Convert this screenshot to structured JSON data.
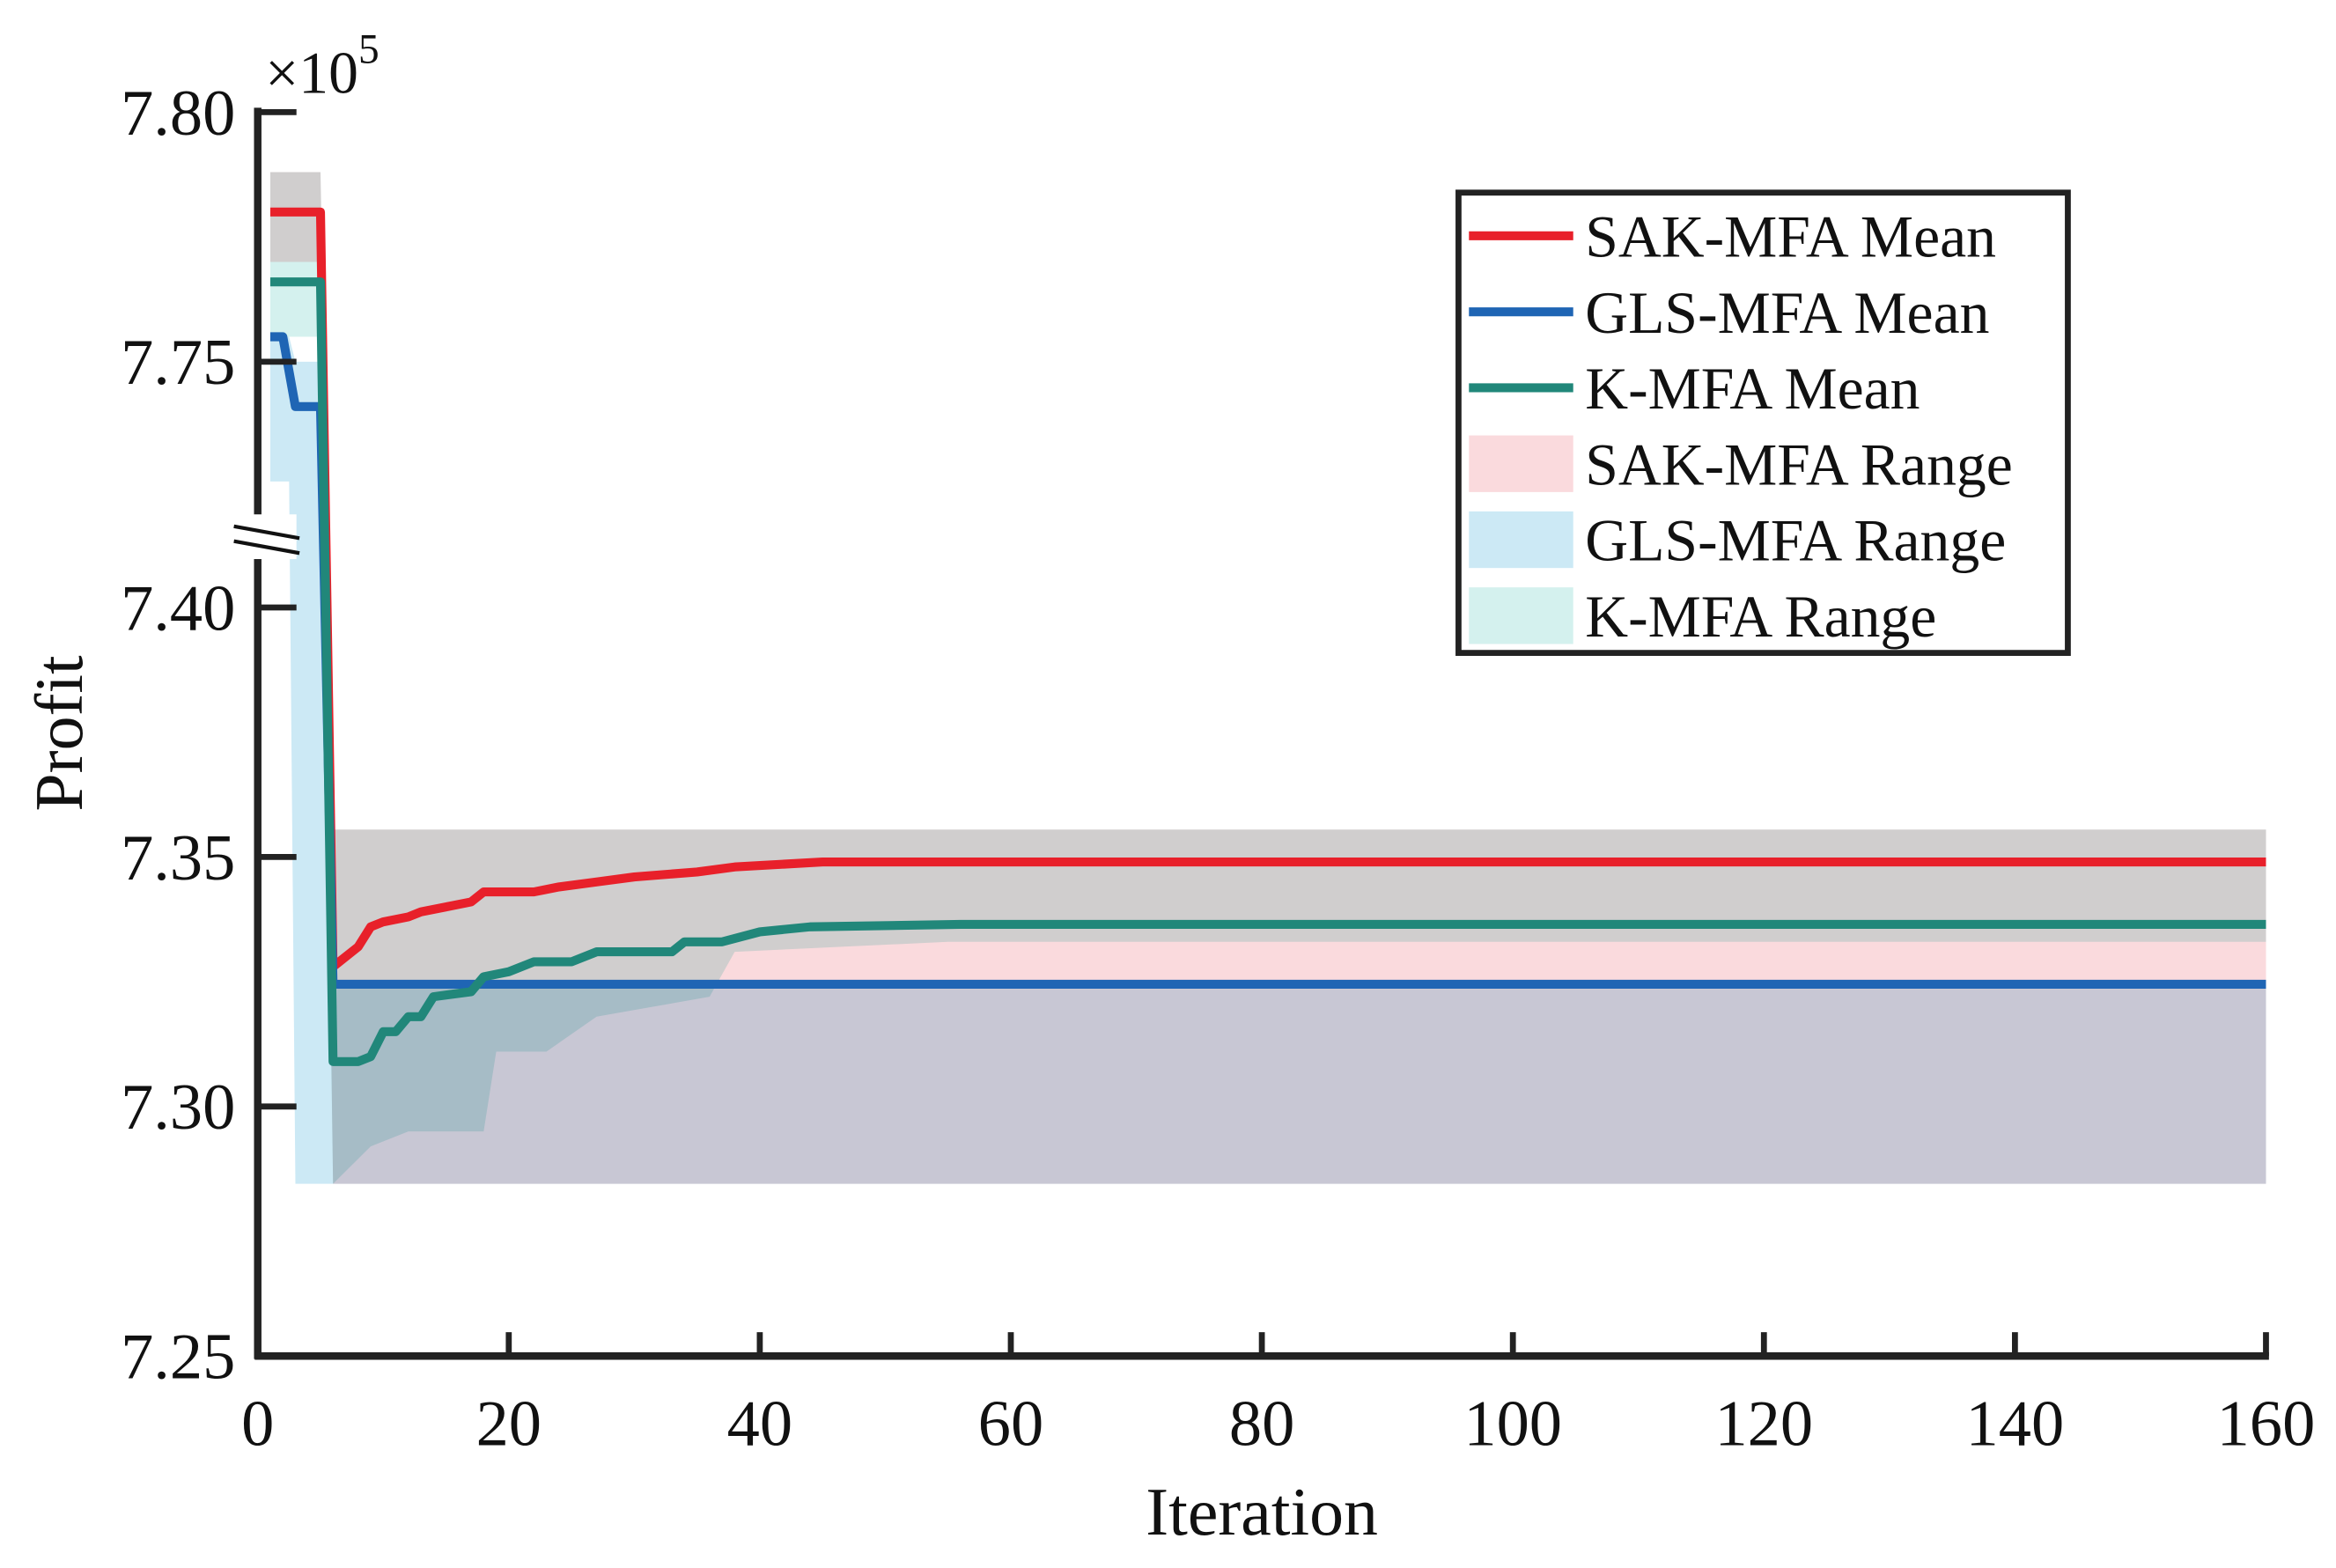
{
  "chart_data": {
    "type": "line",
    "title": "",
    "xlabel": "Iteration",
    "ylabel": "Profit",
    "y_multiplier_label": "×10",
    "y_multiplier_exp": "5",
    "xlim": [
      0,
      160
    ],
    "ylim_lower": [
      7.25,
      7.418
    ],
    "ylim_upper": [
      7.718,
      7.8
    ],
    "axis_break": "//",
    "grid": false,
    "legend_position": "top-right",
    "xticks": [
      "0",
      "20",
      "40",
      "60",
      "80",
      "100",
      "120",
      "140",
      "160"
    ],
    "xtick_values": [
      0,
      20,
      40,
      60,
      80,
      100,
      120,
      140,
      160
    ],
    "yticks": [
      "7.25",
      "7.30",
      "7.35",
      "7.40",
      "7.75",
      "7.80"
    ],
    "ytick_values": [
      7.25,
      7.3,
      7.35,
      7.4,
      7.75,
      7.8
    ],
    "series": [
      {
        "name": "SAK-MFA Mean",
        "kind": "line",
        "color": "#e8202a",
        "points": [
          [
            1,
            7.78
          ],
          [
            5,
            7.78
          ],
          [
            6,
            7.328
          ],
          [
            7,
            7.33
          ],
          [
            8,
            7.332
          ],
          [
            9,
            7.336
          ],
          [
            10,
            7.337
          ],
          [
            12,
            7.338
          ],
          [
            13,
            7.339
          ],
          [
            15,
            7.34
          ],
          [
            17,
            7.341
          ],
          [
            18,
            7.343
          ],
          [
            22,
            7.343
          ],
          [
            24,
            7.344
          ],
          [
            27,
            7.345
          ],
          [
            30,
            7.346
          ],
          [
            35,
            7.347
          ],
          [
            38,
            7.348
          ],
          [
            45,
            7.349
          ],
          [
            160,
            7.349
          ]
        ]
      },
      {
        "name": "GLS-MFA Mean",
        "kind": "line",
        "color": "#1f65b4",
        "points": [
          [
            1,
            7.755
          ],
          [
            2,
            7.755
          ],
          [
            3,
            7.741
          ],
          [
            5,
            7.741
          ],
          [
            6,
            7.3245
          ],
          [
            160,
            7.3245
          ]
        ]
      },
      {
        "name": "K-MFA Mean",
        "kind": "line",
        "color": "#21877a",
        "points": [
          [
            1,
            7.766
          ],
          [
            5,
            7.766
          ],
          [
            6,
            7.309
          ],
          [
            8,
            7.309
          ],
          [
            9,
            7.31
          ],
          [
            10,
            7.315
          ],
          [
            11,
            7.315
          ],
          [
            12,
            7.318
          ],
          [
            13,
            7.318
          ],
          [
            14,
            7.322
          ],
          [
            17,
            7.323
          ],
          [
            18,
            7.326
          ],
          [
            20,
            7.327
          ],
          [
            22,
            7.329
          ],
          [
            25,
            7.329
          ],
          [
            27,
            7.331
          ],
          [
            33,
            7.331
          ],
          [
            34,
            7.333
          ],
          [
            37,
            7.333
          ],
          [
            40,
            7.335
          ],
          [
            44,
            7.336
          ],
          [
            56,
            7.3365
          ],
          [
            160,
            7.3365
          ]
        ]
      },
      {
        "name": "SAK-MFA Range",
        "kind": "band",
        "color": "#fadadd",
        "points": [
          [
            1,
            7.77,
            7.788
          ],
          [
            5,
            7.77,
            7.788
          ],
          [
            6,
            7.2845,
            7.3555
          ],
          [
            160,
            7.2845,
            7.3555
          ]
        ]
      },
      {
        "name": "GLS-MFA Range",
        "kind": "band",
        "color": "#cce9f5",
        "points": [
          [
            1,
            7.726,
            7.755
          ],
          [
            2.5,
            7.726,
            7.755
          ],
          [
            3,
            7.2845,
            7.75
          ],
          [
            5,
            7.2845,
            7.75
          ],
          [
            6,
            7.2845,
            7.3245
          ],
          [
            160,
            7.2845,
            7.3245
          ]
        ]
      },
      {
        "name": "K-MFA Range",
        "kind": "band",
        "color": "#d4f1ee",
        "points": [
          [
            1,
            7.755,
            7.788
          ],
          [
            5,
            7.755,
            7.788
          ],
          [
            6,
            7.2845,
            7.3555
          ],
          [
            9,
            7.292,
            7.3555
          ],
          [
            12,
            7.295,
            7.3555
          ],
          [
            18,
            7.295,
            7.3555
          ],
          [
            19,
            7.311,
            7.3555
          ],
          [
            23,
            7.311,
            7.3555
          ],
          [
            27,
            7.318,
            7.3555
          ],
          [
            36,
            7.322,
            7.3555
          ],
          [
            38,
            7.331,
            7.3555
          ],
          [
            55,
            7.333,
            7.3555
          ],
          [
            160,
            7.333,
            7.3555
          ]
        ]
      }
    ]
  }
}
